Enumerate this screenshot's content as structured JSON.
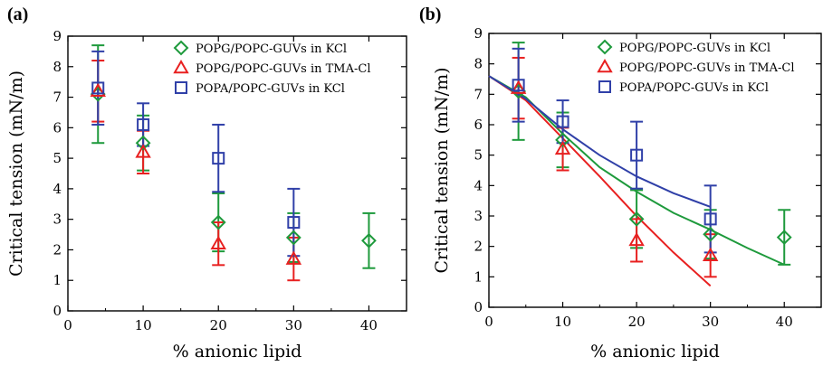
{
  "chart_data": [
    {
      "panel_label": "(a)",
      "type": "scatter",
      "xlabel": "% anionic lipid",
      "ylabel": "Critical tension (mN/m)",
      "xlim": [
        0,
        45
      ],
      "ylim": [
        0,
        9
      ],
      "xticks": [
        0,
        10,
        20,
        30,
        40
      ],
      "yticks": [
        0,
        1,
        2,
        3,
        4,
        5,
        6,
        7,
        8,
        9
      ],
      "legend_position": "top-right",
      "series": [
        {
          "name": "POPG/POPC-GUVs in KCl",
          "color": "#1e9a3c",
          "marker": "diamond",
          "points": [
            {
              "x": 4,
              "y": 7.1,
              "err": 1.6
            },
            {
              "x": 10,
              "y": 5.5,
              "err": 0.9
            },
            {
              "x": 20,
              "y": 2.9,
              "err": 0.95
            },
            {
              "x": 30,
              "y": 2.4,
              "err": 0.8
            },
            {
              "x": 40,
              "y": 2.3,
              "err": 0.9
            }
          ]
        },
        {
          "name": "POPG/POPC-GUVs in TMA-Cl",
          "color": "#e82020",
          "marker": "triangle",
          "points": [
            {
              "x": 4,
              "y": 7.2,
              "err": 1.0
            },
            {
              "x": 10,
              "y": 5.2,
              "err": 0.7
            },
            {
              "x": 20,
              "y": 2.2,
              "err": 0.7
            },
            {
              "x": 30,
              "y": 1.7,
              "err": 0.7
            }
          ]
        },
        {
          "name": "POPA/POPC-GUVs in KCl",
          "color": "#3040a8",
          "marker": "square",
          "points": [
            {
              "x": 4,
              "y": 7.3,
              "err": 1.2
            },
            {
              "x": 10,
              "y": 6.1,
              "err": 0.7
            },
            {
              "x": 20,
              "y": 5.0,
              "err": 1.1
            },
            {
              "x": 30,
              "y": 2.9,
              "err": 1.1
            }
          ]
        }
      ]
    },
    {
      "panel_label": "(b)",
      "type": "scatter",
      "xlabel": "% anionic lipid",
      "ylabel": "Critical tension (mN/m)",
      "xlim": [
        0,
        45
      ],
      "ylim": [
        0,
        9
      ],
      "xticks": [
        0,
        10,
        20,
        30,
        40
      ],
      "yticks": [
        0,
        1,
        2,
        3,
        4,
        5,
        6,
        7,
        8,
        9
      ],
      "legend_position": "top-right",
      "series": [
        {
          "name": "POPG/POPC-GUVs in KCl",
          "color": "#1e9a3c",
          "marker": "diamond",
          "points": [
            {
              "x": 4,
              "y": 7.1,
              "err": 1.6
            },
            {
              "x": 10,
              "y": 5.5,
              "err": 0.9
            },
            {
              "x": 20,
              "y": 2.9,
              "err": 0.95
            },
            {
              "x": 30,
              "y": 2.4,
              "err": 0.8
            },
            {
              "x": 40,
              "y": 2.3,
              "err": 0.9
            }
          ],
          "fit": [
            [
              0,
              7.6
            ],
            [
              5,
              6.9
            ],
            [
              10,
              5.7
            ],
            [
              15,
              4.6
            ],
            [
              20,
              3.8
            ],
            [
              25,
              3.1
            ],
            [
              30,
              2.55
            ],
            [
              35,
              1.95
            ],
            [
              40,
              1.4
            ]
          ]
        },
        {
          "name": "POPG/POPC-GUVs in TMA-Cl",
          "color": "#e82020",
          "marker": "triangle",
          "points": [
            {
              "x": 4,
              "y": 7.2,
              "err": 1.0
            },
            {
              "x": 10,
              "y": 5.2,
              "err": 0.7
            },
            {
              "x": 20,
              "y": 2.2,
              "err": 0.7
            },
            {
              "x": 30,
              "y": 1.7,
              "err": 0.7
            }
          ],
          "fit": [
            [
              0,
              7.6
            ],
            [
              5,
              6.8
            ],
            [
              10,
              5.55
            ],
            [
              15,
              4.3
            ],
            [
              20,
              3.0
            ],
            [
              25,
              1.8
            ],
            [
              30,
              0.7
            ]
          ]
        },
        {
          "name": "POPA/POPC-GUVs in KCl",
          "color": "#3040a8",
          "marker": "square",
          "points": [
            {
              "x": 4,
              "y": 7.3,
              "err": 1.2
            },
            {
              "x": 10,
              "y": 6.1,
              "err": 0.7
            },
            {
              "x": 20,
              "y": 5.0,
              "err": 1.1
            },
            {
              "x": 30,
              "y": 2.9,
              "err": 1.1
            }
          ],
          "fit": [
            [
              0,
              7.6
            ],
            [
              5,
              6.85
            ],
            [
              10,
              5.85
            ],
            [
              15,
              5.0
            ],
            [
              20,
              4.3
            ],
            [
              25,
              3.75
            ],
            [
              30,
              3.3
            ]
          ]
        }
      ]
    }
  ]
}
